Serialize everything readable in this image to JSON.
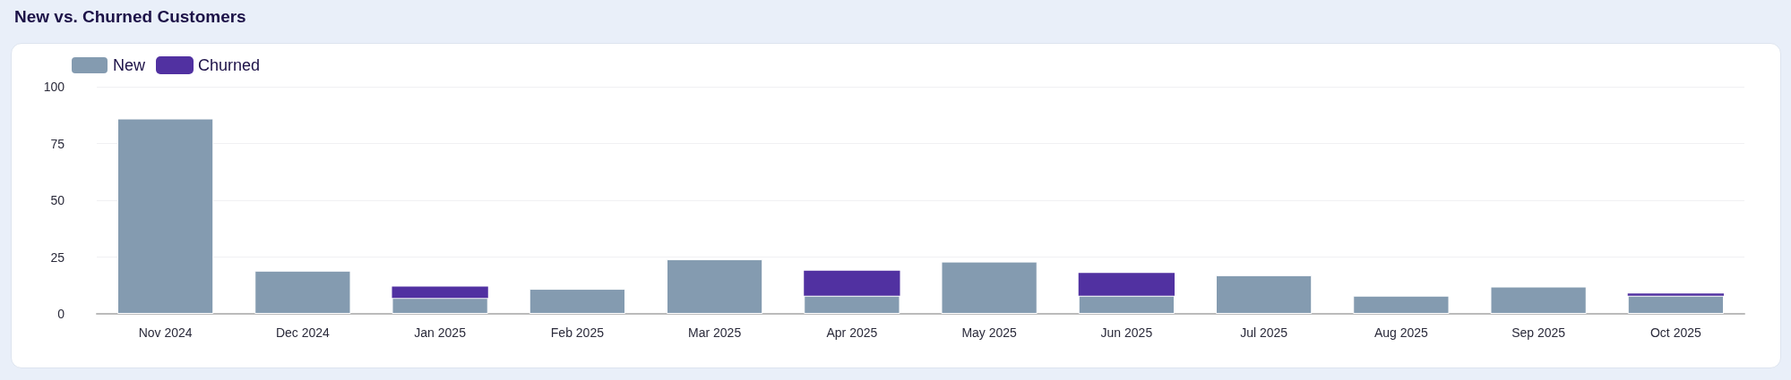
{
  "chart_data": {
    "type": "bar",
    "title": "New vs. Churned Customers",
    "stacked": true,
    "categories": [
      "Nov 2024",
      "Dec 2024",
      "Jan 2025",
      "Feb 2025",
      "Mar 2025",
      "Apr 2025",
      "May 2025",
      "Jun 2025",
      "Jul 2025",
      "Aug 2025",
      "Sep 2025",
      "Oct 2025"
    ],
    "series": [
      {
        "name": "New",
        "color": "#849bb0",
        "values": [
          86,
          19,
          7,
          11,
          24,
          8,
          23,
          8,
          17,
          8,
          12,
          8
        ]
      },
      {
        "name": "Churned",
        "color": "#5131a1",
        "values": [
          null,
          null,
          5,
          null,
          null,
          11,
          null,
          10,
          null,
          null,
          null,
          1
        ]
      }
    ],
    "ylim": [
      0,
      100
    ],
    "yticks": [
      0,
      25,
      50,
      75,
      100
    ],
    "grid": "y",
    "legend": "top left"
  }
}
